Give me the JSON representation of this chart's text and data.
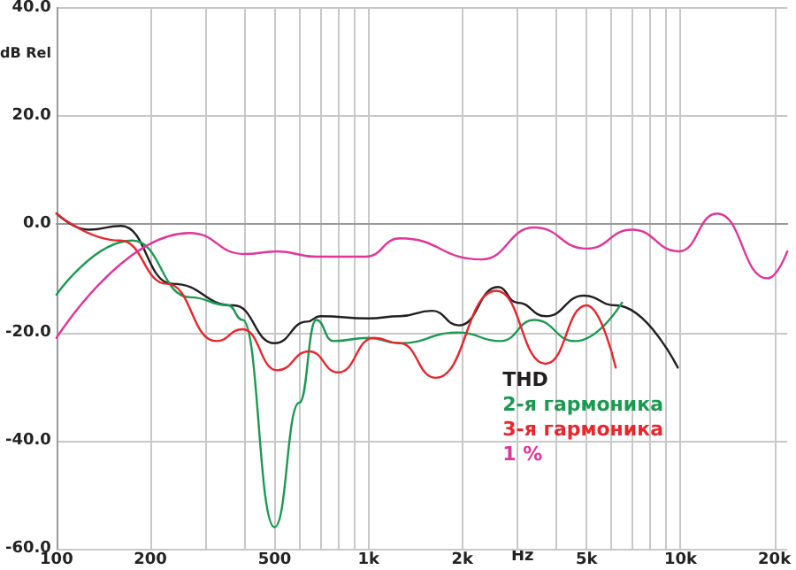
{
  "chart_data": {
    "type": "line",
    "xlabel": "Hz",
    "ylabel": "dB Rel",
    "log": "x",
    "xlim": [
      100,
      22000
    ],
    "xticks": [
      100,
      200,
      {
        "value": 300,
        "label": null
      },
      {
        "value": 400,
        "label": null
      },
      500,
      {
        "value": 600,
        "label": null
      },
      {
        "value": 700,
        "label": null
      },
      {
        "value": 800,
        "label": null
      },
      {
        "value": 900,
        "label": null
      },
      {
        "value": 1000,
        "label": "1k"
      },
      {
        "value": 2000,
        "label": "2k"
      },
      {
        "value": 3000,
        "label": null
      },
      {
        "value": 4000,
        "label": null
      },
      {
        "value": 5000,
        "label": "5k"
      },
      {
        "value": 6000,
        "label": null
      },
      {
        "value": 7000,
        "label": null
      },
      {
        "value": 8000,
        "label": null
      },
      {
        "value": 9000,
        "label": null
      },
      {
        "value": 10000,
        "label": "10k"
      },
      {
        "value": 20000,
        "label": "20k"
      }
    ],
    "ylim": [
      -60,
      40
    ],
    "yticks": [
      {
        "value": -60,
        "label": "-60.0"
      },
      {
        "value": -40,
        "label": "-40.0"
      },
      {
        "value": -20,
        "label": "-20.0"
      },
      {
        "value": 0,
        "label": "0.0"
      },
      {
        "value": 20,
        "label": "20.0"
      },
      {
        "value": 40,
        "label": "40.0"
      }
    ],
    "grid": true,
    "legend": "bottom right",
    "marker": "none",
    "line_style": "solid",
    "series": [
      {
        "name": "THD",
        "color": "#231f20",
        "x": [
          100,
          127,
          161,
          235,
          370,
          500,
          635,
          700,
          1000,
          1260,
          1600,
          1950,
          2600,
          3000,
          3700,
          4900,
          6200,
          9800
        ],
        "values": [
          2,
          -1,
          -0.3,
          -11,
          -15,
          -22,
          -18,
          -17,
          -17.4,
          -17,
          -16,
          -18.7,
          -11.6,
          -14.5,
          -17,
          -13.2,
          -15,
          -26.5
        ]
      },
      {
        "name": "2-я гармоника",
        "color": "#1a9a50",
        "x": [
          100,
          175,
          268,
          355,
          395,
          500,
          600,
          680,
          770,
          1000,
          1260,
          1940,
          2650,
          3400,
          4600,
          6500
        ],
        "values": [
          -13,
          -3,
          -13.5,
          -15,
          -17.7,
          -56,
          -33,
          -17.7,
          -21.6,
          -21,
          -22,
          -20,
          -21.6,
          -17.7,
          -21.6,
          -14.5
        ]
      },
      {
        "name": "3-я гармоника",
        "color": "#e8262b",
        "x": [
          100,
          160,
          226,
          325,
          395,
          510,
          645,
          800,
          1040,
          1260,
          1640,
          2570,
          3700,
          5000,
          6200
        ],
        "values": [
          2,
          -3,
          -11,
          -21.6,
          -19.4,
          -27,
          -23.5,
          -27.4,
          -21,
          -22,
          -28.4,
          -12.3,
          -25.8,
          -15,
          -26.5
        ]
      },
      {
        "name": "1 %",
        "color": "#e0359b",
        "x": [
          100,
          267,
          400,
          510,
          680,
          980,
          1260,
          2300,
          3400,
          5000,
          7000,
          9900,
          13100,
          19000,
          22000
        ],
        "values": [
          -21,
          -1.6,
          -5.5,
          -5,
          -6,
          -6,
          -2.6,
          -6.5,
          -0.6,
          -4.5,
          -1,
          -5,
          2,
          -10,
          -5
        ]
      }
    ]
  }
}
